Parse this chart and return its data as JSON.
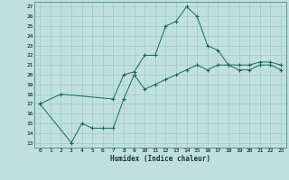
{
  "title": "",
  "xlabel": "Humidex (Indice chaleur)",
  "bg_color": "#c0e0e0",
  "grid_color": "#a0c8c8",
  "line_color": "#1a6655",
  "upper_x": [
    0,
    2,
    7,
    8,
    9,
    10,
    11,
    12,
    13,
    14,
    15,
    16,
    17,
    18,
    19,
    20,
    21,
    22,
    23
  ],
  "upper_y": [
    17.0,
    18.0,
    17.5,
    20.0,
    20.3,
    22.0,
    22.0,
    25.0,
    25.5,
    27.0,
    26.0,
    23.0,
    22.5,
    21.0,
    21.0,
    21.0,
    21.3,
    21.3,
    21.0
  ],
  "lower_x": [
    0,
    3,
    4,
    5,
    6,
    7,
    8,
    9,
    10,
    11,
    12,
    13,
    14,
    15,
    16,
    17,
    18,
    19,
    20,
    21,
    22,
    23
  ],
  "lower_y": [
    17.0,
    13.0,
    15.0,
    14.5,
    14.5,
    14.5,
    17.5,
    20.0,
    18.5,
    19.0,
    19.5,
    20.0,
    20.5,
    21.0,
    20.5,
    21.0,
    21.0,
    20.5,
    20.5,
    21.0,
    21.0,
    20.5
  ],
  "xlim": [
    -0.5,
    23.5
  ],
  "ylim": [
    12.5,
    27.5
  ],
  "yticks": [
    13,
    14,
    15,
    16,
    17,
    18,
    19,
    20,
    21,
    22,
    23,
    24,
    25,
    26,
    27
  ],
  "xticks": [
    0,
    1,
    2,
    3,
    4,
    5,
    6,
    7,
    8,
    9,
    10,
    11,
    12,
    13,
    14,
    15,
    16,
    17,
    18,
    19,
    20,
    21,
    22,
    23
  ],
  "xtick_labels": [
    "0",
    "1",
    "2",
    "3",
    "4",
    "5",
    "6",
    "7",
    "8",
    "9",
    "10",
    "11",
    "12",
    "13",
    "14",
    "15",
    "16",
    "17",
    "18",
    "19",
    "20",
    "21",
    "22",
    "23"
  ]
}
